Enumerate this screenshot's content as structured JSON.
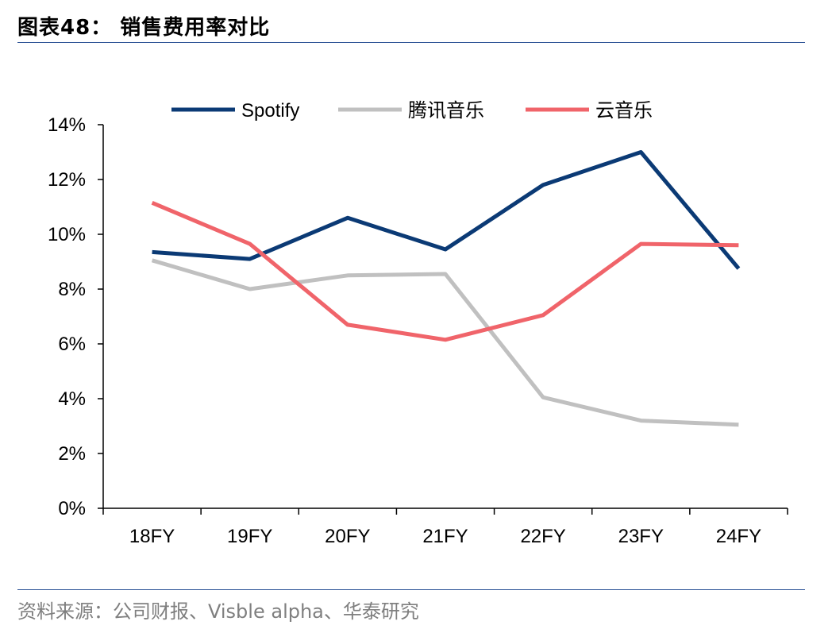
{
  "header": {
    "title": "图表48：  销售费用率对比"
  },
  "footer": {
    "source": "资料来源：公司财报、Visble alpha、华泰研究"
  },
  "chart_data": {
    "type": "line",
    "title": "",
    "xlabel": "",
    "ylabel": "",
    "categories": [
      "18FY",
      "19FY",
      "20FY",
      "21FY",
      "22FY",
      "23FY",
      "24FY"
    ],
    "ylim": [
      0,
      14
    ],
    "ytick_step": 2,
    "ytick_format": "percent",
    "grid": false,
    "legend_position": "top",
    "series": [
      {
        "name": "Spotify",
        "color": "#0b3a75",
        "values": [
          9.35,
          9.1,
          10.6,
          9.45,
          11.8,
          13.0,
          8.75
        ]
      },
      {
        "name": "腾讯音乐",
        "color": "#c0c0c0",
        "values": [
          9.05,
          8.0,
          8.5,
          8.55,
          4.05,
          3.2,
          3.05
        ]
      },
      {
        "name": "云音乐",
        "color": "#f0646a",
        "values": [
          11.15,
          9.65,
          6.7,
          6.15,
          7.05,
          9.65,
          9.6
        ]
      }
    ]
  }
}
